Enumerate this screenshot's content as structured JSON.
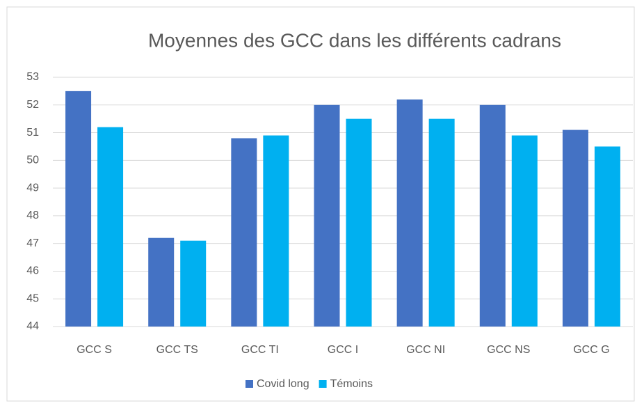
{
  "chart_data": {
    "type": "bar",
    "title": "Moyennes des GCC dans les différents cadrans",
    "categories": [
      "GCC S",
      "GCC TS",
      "GCC TI",
      "GCC I",
      "GCC NI",
      "GCC NS",
      "GCC G"
    ],
    "series": [
      {
        "name": "Covid long",
        "color": "#4472c4",
        "values": [
          52.5,
          47.2,
          50.8,
          52.0,
          52.2,
          52.0,
          51.1
        ]
      },
      {
        "name": "Témoins",
        "color": "#00b0f0",
        "values": [
          51.2,
          47.1,
          50.9,
          51.5,
          51.5,
          50.9,
          50.5
        ]
      }
    ],
    "ylim": [
      44,
      53
    ],
    "yticks": [
      44,
      45,
      46,
      47,
      48,
      49,
      50,
      51,
      52,
      53
    ],
    "grid": true,
    "legend": "bottom"
  }
}
